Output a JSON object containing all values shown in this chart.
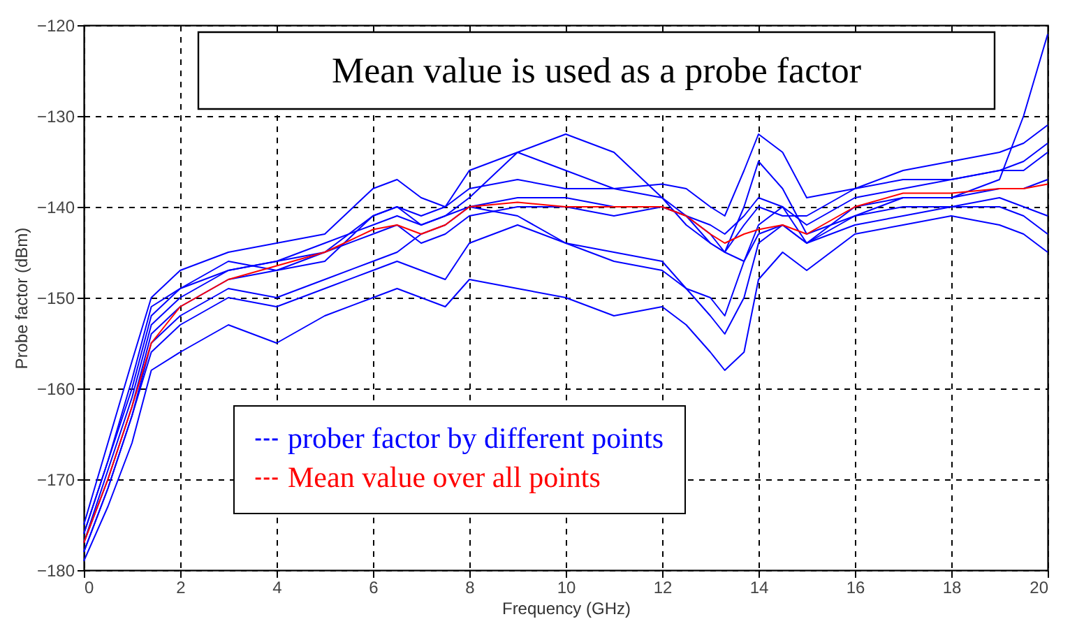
{
  "chart_data": {
    "type": "line",
    "xlabel": "Frequency (GHz)",
    "ylabel": "Probe factor (dBm)",
    "annotations": [
      "Mean value is used as a probe factor"
    ],
    "x": [
      0,
      0.5,
      1,
      1.4,
      2,
      3,
      4,
      5,
      6,
      6.5,
      7,
      7.5,
      8,
      9,
      10,
      11,
      12,
      12.5,
      13,
      13.3,
      13.7,
      14,
      14.5,
      15,
      16,
      17,
      18,
      19,
      19.5,
      20
    ],
    "series": [
      {
        "name": "prober factor by different points",
        "color": "#0000ff",
        "values": [
          -175,
          -166,
          -157,
          -150,
          -147,
          -145,
          -144,
          -143,
          -138,
          -137,
          -139,
          -140,
          -136,
          -134,
          -136,
          -138,
          -137.5,
          -138,
          -140,
          -141,
          -136,
          -132,
          -134,
          -139,
          -138,
          -136,
          -135,
          -134,
          -133,
          -131
        ]
      },
      {
        "color": "#0000ff",
        "values": [
          -179,
          -173,
          -166,
          -158,
          -156,
          -153,
          -155,
          -152,
          -150,
          -149,
          -150,
          -151,
          -148,
          -149,
          -150,
          -152,
          -151,
          -153,
          -156,
          -158,
          -156,
          -148,
          -145,
          -147,
          -143,
          -142,
          -141,
          -142,
          -143,
          -145
        ]
      },
      {
        "color": "#0000ff",
        "values": [
          -176,
          -168,
          -159,
          -151,
          -149,
          -146,
          -147,
          -146,
          -141,
          -140,
          -141,
          -140,
          -138,
          -137,
          -138,
          -138,
          -139,
          -141,
          -144,
          -145,
          -142,
          -140,
          -141,
          -141,
          -138,
          -137,
          -137,
          -136,
          -136,
          -134
        ]
      },
      {
        "color": "#0000ff",
        "values": [
          -178,
          -171,
          -163,
          -156,
          -153,
          -150,
          -151,
          -149,
          -147,
          -146,
          -147,
          -148,
          -144,
          -142,
          -144,
          -145,
          -146,
          -149,
          -152,
          -154,
          -150,
          -144,
          -142,
          -144,
          -141,
          -140,
          -140,
          -139,
          -140,
          -141
        ]
      },
      {
        "color": "#0000ff",
        "values": [
          -177,
          -169,
          -161,
          -153,
          -150,
          -147,
          -146,
          -145,
          -141,
          -140,
          -142,
          -141,
          -139,
          -134,
          -132,
          -134,
          -139,
          -142,
          -144,
          -145,
          -140,
          -135,
          -138,
          -143,
          -141,
          -139,
          -139,
          -137,
          -130,
          -121
        ]
      },
      {
        "color": "#0000ff",
        "values": [
          -177,
          -170,
          -162,
          -154,
          -151,
          -148,
          -147,
          -145,
          -143,
          -142,
          -144,
          -143,
          -141,
          -140,
          -140,
          -141,
          -140,
          -141,
          -143,
          -145,
          -146,
          -143,
          -142,
          -144,
          -140,
          -139,
          -139,
          -138,
          -138,
          -137
        ]
      },
      {
        "color": "#0000ff",
        "values": [
          -176,
          -168,
          -160,
          -152,
          -149,
          -147,
          -146,
          -144,
          -142,
          -141,
          -142,
          -141,
          -140,
          -141,
          -144,
          -146,
          -147,
          -149,
          -150,
          -152,
          -146,
          -142,
          -140,
          -144,
          -142,
          -141,
          -140,
          -140,
          -141,
          -143
        ]
      },
      {
        "color": "#0000ff",
        "values": [
          -178,
          -171,
          -163,
          -155,
          -152,
          -149,
          -150,
          -148,
          -146,
          -145,
          -143,
          -142,
          -140,
          -139,
          -139,
          -140,
          -140,
          -141,
          -142,
          -143,
          -141,
          -139,
          -140,
          -142,
          -139,
          -138,
          -137,
          -136,
          -135,
          -133
        ]
      },
      {
        "name": "Mean value over all points",
        "color": "#ff0000",
        "values": [
          -177,
          -170,
          -162,
          -155,
          -151,
          -148,
          -146.5,
          -145,
          -142.5,
          -142,
          -143,
          -142,
          -140,
          -139.5,
          -140,
          -140,
          -140,
          -141,
          -143,
          -144,
          -143,
          -142.5,
          -142,
          -143,
          -140,
          -138.5,
          -138.5,
          -138,
          -138,
          -137.5
        ]
      }
    ],
    "xlim": [
      0,
      20
    ],
    "xticks": [
      0,
      2,
      4,
      6,
      8,
      10,
      12,
      14,
      16,
      18,
      20
    ],
    "ylim": [
      -180,
      -120
    ],
    "yticks": [
      -180,
      -170,
      -160,
      -150,
      -140,
      -130,
      -120
    ],
    "grid": true,
    "legend": "bottom"
  }
}
